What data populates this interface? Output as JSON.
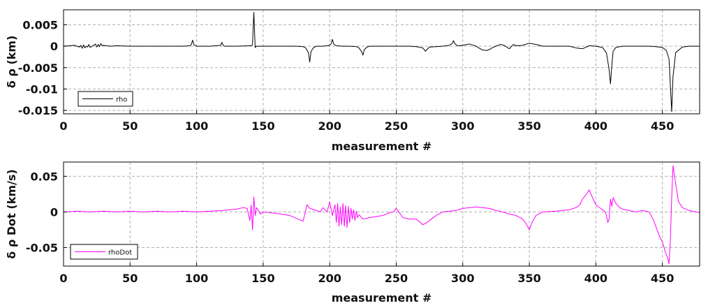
{
  "chart_data": [
    {
      "type": "line",
      "xlabel": "measurement #",
      "ylabel": "δ ρ (km)",
      "xlim": [
        0,
        478
      ],
      "ylim": [
        -0.0158,
        0.0085
      ],
      "xticks": [
        0,
        50,
        100,
        150,
        200,
        250,
        300,
        350,
        400,
        450
      ],
      "xtick_labels": [
        "0",
        "50",
        "100",
        "150",
        "200",
        "250",
        "300",
        "350",
        "400",
        "450"
      ],
      "yticks": [
        0.005,
        0,
        -0.005,
        -0.01,
        -0.015
      ],
      "ytick_labels": [
        "0.005",
        "0",
        "-0.005",
        "-0.01",
        "-0.015"
      ],
      "grid": true,
      "legend": "bottom-left",
      "series": [
        {
          "name": "rho",
          "color": "#000000",
          "x": [
            0,
            5,
            8,
            10,
            12,
            13,
            14,
            15,
            16,
            17,
            18,
            19,
            20,
            22,
            24,
            25,
            26,
            27,
            28,
            29,
            30,
            35,
            40,
            50,
            60,
            70,
            80,
            90,
            95,
            96,
            97,
            98,
            99,
            100,
            110,
            118,
            119,
            120,
            121,
            125,
            130,
            140,
            141,
            142,
            143,
            144,
            145,
            150,
            160,
            170,
            175,
            180,
            182,
            184,
            185,
            186,
            188,
            190,
            195,
            200,
            201,
            202,
            203,
            205,
            210,
            215,
            220,
            222,
            224,
            225,
            226,
            228,
            230,
            240,
            250,
            260,
            265,
            270,
            272,
            273,
            275,
            280,
            285,
            290,
            292,
            293,
            294,
            296,
            300,
            305,
            310,
            312,
            315,
            318,
            320,
            322,
            325,
            328,
            330,
            332,
            335,
            338,
            340,
            345,
            350,
            355,
            360,
            370,
            380,
            385,
            390,
            395,
            400,
            405,
            408,
            410,
            411,
            412,
            413,
            415,
            420,
            430,
            440,
            445,
            450,
            453,
            455,
            456,
            457,
            458,
            460,
            465,
            470,
            478
          ],
          "y": [
            0.0,
            0.0001,
            0.0002,
            0.0,
            -0.0002,
            0.0002,
            -0.0005,
            0.0003,
            -0.0004,
            0.0,
            -0.0002,
            0.0004,
            -0.0003,
            0.0001,
            0.0005,
            -0.0002,
            0.0004,
            -0.0001,
            0.0006,
            0.0001,
            0.0002,
            0.0,
            0.0001,
            0.0,
            0.0,
            0.0,
            0.0,
            0.0,
            0.0001,
            0.0004,
            0.0014,
            0.0003,
            0.0001,
            0.0,
            0.0,
            0.0002,
            0.0009,
            0.0002,
            0.0,
            0.0,
            0.0,
            0.0001,
            0.0001,
            0.0003,
            0.0079,
            -0.0003,
            0.0,
            0.0,
            0.0,
            0.0,
            0.0,
            -0.0001,
            -0.0004,
            -0.0015,
            -0.0037,
            -0.0012,
            -0.0003,
            0.0,
            0.0,
            0.0002,
            0.0005,
            0.0016,
            0.0005,
            0.0001,
            0.0,
            0.0,
            -0.0001,
            -0.0004,
            -0.0013,
            -0.0021,
            -0.0008,
            -0.0002,
            0.0,
            0.0,
            0.0,
            0.0,
            -0.0001,
            -0.0004,
            -0.0012,
            -0.0008,
            -0.0002,
            -0.0001,
            0.0,
            0.0002,
            0.0006,
            0.0013,
            0.0006,
            0.0001,
            0.0002,
            0.0005,
            0.0,
            -0.0004,
            -0.0009,
            -0.001,
            -0.0008,
            -0.0004,
            0.0,
            0.0004,
            0.0003,
            0.0,
            -0.0006,
            0.0004,
            0.0001,
            0.0002,
            0.0007,
            0.0004,
            0.0,
            0.0,
            0.0,
            -0.0004,
            -0.0006,
            0.0001,
            0.0,
            -0.0003,
            -0.0016,
            -0.0055,
            -0.0088,
            -0.0045,
            -0.0012,
            -0.0003,
            0.0,
            0.0,
            0.0,
            -0.0001,
            -0.0003,
            -0.001,
            -0.003,
            -0.0092,
            -0.0153,
            -0.007,
            -0.0015,
            -0.0002,
            0.0,
            0.0
          ]
        }
      ]
    },
    {
      "type": "line",
      "xlabel": "measurement #",
      "ylabel": "δ ρ Dot (km/s)",
      "xlim": [
        0,
        478
      ],
      "ylim": [
        -0.076,
        0.07
      ],
      "xticks": [
        0,
        50,
        100,
        150,
        200,
        250,
        300,
        350,
        400,
        450
      ],
      "xtick_labels": [
        "0",
        "50",
        "100",
        "150",
        "200",
        "250",
        "300",
        "350",
        "400",
        "450"
      ],
      "yticks": [
        0.05,
        0,
        -0.05
      ],
      "ytick_labels": [
        "0.05",
        "0",
        "-0.05"
      ],
      "grid": true,
      "legend": "bottom-left",
      "series": [
        {
          "name": "rhoDot",
          "color": "#ff00ff",
          "x": [
            0,
            10,
            20,
            30,
            40,
            50,
            60,
            70,
            80,
            90,
            100,
            110,
            120,
            125,
            130,
            135,
            138,
            140,
            141,
            142,
            143,
            144,
            145,
            148,
            150,
            160,
            170,
            180,
            183,
            185,
            190,
            193,
            195,
            198,
            200,
            202,
            204,
            205,
            206,
            207,
            208,
            209,
            210,
            211,
            212,
            213,
            214,
            215,
            216,
            217,
            218,
            219,
            220,
            221,
            222,
            225,
            230,
            240,
            245,
            248,
            250,
            252,
            255,
            260,
            265,
            270,
            273,
            275,
            280,
            285,
            290,
            295,
            300,
            305,
            310,
            315,
            320,
            325,
            330,
            335,
            340,
            345,
            348,
            350,
            352,
            355,
            360,
            370,
            380,
            385,
            388,
            390,
            393,
            395,
            397,
            400,
            405,
            407,
            408,
            409,
            410,
            411,
            412,
            413,
            415,
            418,
            420,
            425,
            430,
            435,
            440,
            443,
            445,
            448,
            450,
            452,
            454,
            455,
            456,
            457,
            458,
            460,
            462,
            465,
            470,
            478
          ],
          "y": [
            0.0,
            0.001,
            0.0,
            0.001,
            0.0,
            0.001,
            0.0,
            0.001,
            0.0,
            0.001,
            0.0,
            0.001,
            0.002,
            0.003,
            0.004,
            0.006,
            0.005,
            -0.012,
            0.01,
            -0.025,
            0.021,
            -0.005,
            0.006,
            -0.003,
            0.0,
            -0.002,
            -0.005,
            -0.013,
            0.01,
            0.005,
            0.002,
            0.0,
            0.006,
            0.0,
            0.014,
            -0.005,
            0.01,
            -0.015,
            0.012,
            -0.02,
            0.007,
            -0.018,
            0.012,
            -0.02,
            0.009,
            -0.022,
            0.008,
            -0.015,
            0.005,
            -0.01,
            0.003,
            -0.012,
            0.001,
            -0.008,
            -0.004,
            -0.01,
            -0.008,
            -0.005,
            -0.001,
            0.0,
            0.005,
            0.0,
            -0.008,
            -0.01,
            -0.01,
            -0.018,
            -0.015,
            -0.012,
            -0.005,
            0.0,
            0.001,
            0.002,
            0.005,
            0.006,
            0.007,
            0.006,
            0.005,
            0.002,
            0.0,
            -0.003,
            -0.005,
            -0.01,
            -0.018,
            -0.025,
            -0.015,
            -0.005,
            0.0,
            0.001,
            0.003,
            0.006,
            0.01,
            0.018,
            0.025,
            0.031,
            0.022,
            0.01,
            0.003,
            0.0,
            -0.005,
            -0.015,
            -0.01,
            0.018,
            0.008,
            0.02,
            0.012,
            0.006,
            0.004,
            0.002,
            0.0,
            0.002,
            0.0,
            -0.01,
            -0.02,
            -0.035,
            -0.042,
            -0.055,
            -0.065,
            -0.073,
            -0.04,
            0.02,
            0.065,
            0.04,
            0.015,
            0.006,
            0.002,
            -0.001
          ]
        }
      ]
    }
  ]
}
